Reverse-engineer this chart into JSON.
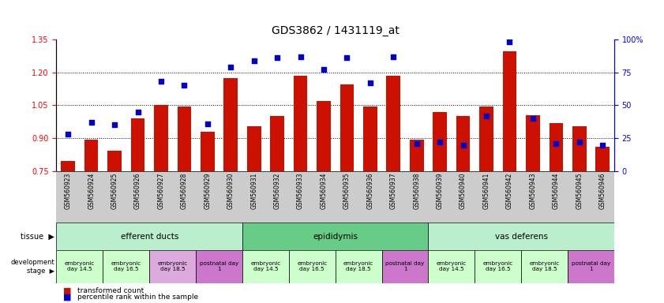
{
  "title": "GDS3862 / 1431119_at",
  "samples": [
    "GSM560923",
    "GSM560924",
    "GSM560925",
    "GSM560926",
    "GSM560927",
    "GSM560928",
    "GSM560929",
    "GSM560930",
    "GSM560931",
    "GSM560932",
    "GSM560933",
    "GSM560934",
    "GSM560935",
    "GSM560936",
    "GSM560937",
    "GSM560938",
    "GSM560939",
    "GSM560940",
    "GSM560941",
    "GSM560942",
    "GSM560943",
    "GSM560944",
    "GSM560945",
    "GSM560946"
  ],
  "transformed_count": [
    0.795,
    0.895,
    0.845,
    0.99,
    1.05,
    1.045,
    0.93,
    1.175,
    0.955,
    1.0,
    1.185,
    1.07,
    1.145,
    1.045,
    1.185,
    0.895,
    1.02,
    1.0,
    1.045,
    1.295,
    1.005,
    0.97,
    0.955,
    0.86
  ],
  "percentile_rank": [
    28,
    37,
    35,
    45,
    68,
    65,
    36,
    79,
    84,
    86,
    87,
    77,
    86,
    67,
    87,
    21,
    22,
    20,
    42,
    98,
    40,
    21,
    22,
    20
  ],
  "bar_color": "#cc1100",
  "marker_color": "#0000cc",
  "ylim_left": [
    0.75,
    1.35
  ],
  "ylim_right": [
    0,
    100
  ],
  "yticks_left": [
    0.75,
    0.9,
    1.05,
    1.2,
    1.35
  ],
  "yticks_right": [
    0,
    25,
    50,
    75,
    100
  ],
  "ytick_labels_right": [
    "0",
    "25",
    "50",
    "75",
    "100%"
  ],
  "grid_lines": [
    0.9,
    1.05,
    1.2
  ],
  "tissues": [
    {
      "label": "efferent ducts",
      "start": 0,
      "end": 8,
      "color": "#bbeecc"
    },
    {
      "label": "epididymis",
      "start": 8,
      "end": 16,
      "color": "#66cc88"
    },
    {
      "label": "vas deferens",
      "start": 16,
      "end": 24,
      "color": "#bbeecc"
    }
  ],
  "dev_stages": [
    {
      "label": "embryonic\nday 14.5",
      "start": 0,
      "end": 2,
      "color": "#ccffcc"
    },
    {
      "label": "embryonic\nday 16.5",
      "start": 2,
      "end": 4,
      "color": "#ccffcc"
    },
    {
      "label": "embryonic\nday 18.5",
      "start": 4,
      "end": 6,
      "color": "#ddaadd"
    },
    {
      "label": "postnatal day\n1",
      "start": 6,
      "end": 8,
      "color": "#cc77cc"
    },
    {
      "label": "embryonic\nday 14.5",
      "start": 8,
      "end": 10,
      "color": "#ccffcc"
    },
    {
      "label": "embryonic\nday 16.5",
      "start": 10,
      "end": 12,
      "color": "#ccffcc"
    },
    {
      "label": "embryonic\nday 18.5",
      "start": 12,
      "end": 14,
      "color": "#ccffcc"
    },
    {
      "label": "postnatal day\n1",
      "start": 14,
      "end": 16,
      "color": "#cc77cc"
    },
    {
      "label": "embryonic\nday 14.5",
      "start": 16,
      "end": 18,
      "color": "#ccffcc"
    },
    {
      "label": "embryonic\nday 16.5",
      "start": 18,
      "end": 20,
      "color": "#ccffcc"
    },
    {
      "label": "embryonic\nday 18.5",
      "start": 20,
      "end": 22,
      "color": "#ccffcc"
    },
    {
      "label": "postnatal day\n1",
      "start": 22,
      "end": 24,
      "color": "#cc77cc"
    }
  ],
  "legend_bar_label": "transformed count",
  "legend_marker_label": "percentile rank within the sample",
  "xticklabel_bg": "#cccccc"
}
